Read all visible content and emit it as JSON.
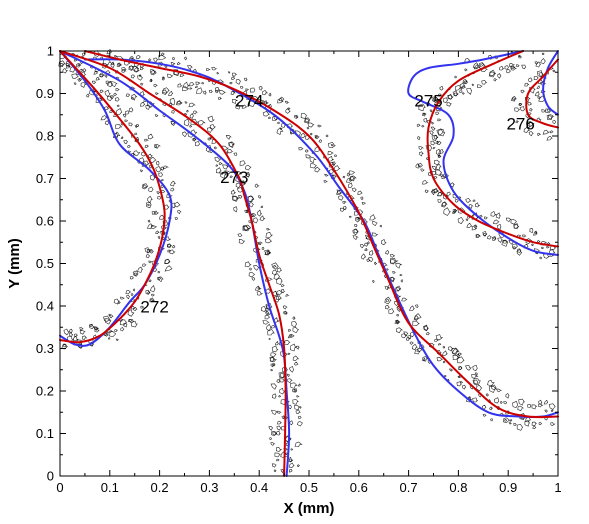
{
  "chart_data": {
    "type": "line",
    "title": "",
    "xlabel": "X (mm)",
    "ylabel": "Y (mm)",
    "xlim": [
      0,
      1
    ],
    "ylim": [
      0,
      1
    ],
    "xticks": [
      "0",
      "0.1",
      "0.2",
      "0.3",
      "0.4",
      "0.5",
      "0.6",
      "0.7",
      "0.8",
      "0.9",
      "1"
    ],
    "yticks": [
      "0",
      "0.1",
      "0.2",
      "0.3",
      "0.4",
      "0.5",
      "0.6",
      "0.7",
      "0.8",
      "0.9",
      "1"
    ],
    "grid": false,
    "legend": "none",
    "colors": {
      "red": "#cc0000",
      "blue": "#3333ee",
      "contour": "#000000"
    },
    "front_labels": [
      {
        "text": "272",
        "x": 0.19,
        "y": 0.385
      },
      {
        "text": "273",
        "x": 0.35,
        "y": 0.69
      },
      {
        "text": "274",
        "x": 0.38,
        "y": 0.87
      },
      {
        "text": "275",
        "x": 0.74,
        "y": 0.87
      },
      {
        "text": "276",
        "x": 0.925,
        "y": 0.815
      }
    ],
    "series": [
      {
        "color": "red",
        "points": [
          [
            0.0,
            0.32
          ],
          [
            0.04,
            0.315
          ],
          [
            0.08,
            0.33
          ],
          [
            0.12,
            0.37
          ],
          [
            0.15,
            0.41
          ],
          [
            0.17,
            0.45
          ],
          [
            0.19,
            0.5
          ],
          [
            0.205,
            0.56
          ],
          [
            0.21,
            0.62
          ],
          [
            0.2,
            0.68
          ],
          [
            0.185,
            0.73
          ],
          [
            0.16,
            0.78
          ],
          [
            0.12,
            0.84
          ],
          [
            0.07,
            0.91
          ],
          [
            0.0,
            1.0
          ]
        ]
      },
      {
        "color": "blue",
        "points": [
          [
            0.0,
            0.33
          ],
          [
            0.03,
            0.31
          ],
          [
            0.06,
            0.31
          ],
          [
            0.1,
            0.35
          ],
          [
            0.14,
            0.41
          ],
          [
            0.17,
            0.45
          ],
          [
            0.2,
            0.52
          ],
          [
            0.22,
            0.6
          ],
          [
            0.22,
            0.66
          ],
          [
            0.18,
            0.72
          ],
          [
            0.12,
            0.78
          ],
          [
            0.09,
            0.86
          ],
          [
            0.05,
            0.93
          ],
          [
            0.0,
            1.0
          ]
        ]
      },
      {
        "color": "red",
        "points": [
          [
            0.45,
            0.0
          ],
          [
            0.452,
            0.1
          ],
          [
            0.453,
            0.2
          ],
          [
            0.45,
            0.3
          ],
          [
            0.44,
            0.38
          ],
          [
            0.42,
            0.45
          ],
          [
            0.4,
            0.52
          ],
          [
            0.385,
            0.6
          ],
          [
            0.37,
            0.66
          ],
          [
            0.36,
            0.7
          ],
          [
            0.32,
            0.78
          ],
          [
            0.26,
            0.84
          ],
          [
            0.18,
            0.9
          ],
          [
            0.1,
            0.96
          ],
          [
            0.0,
            1.0
          ]
        ]
      },
      {
        "color": "blue",
        "points": [
          [
            0.455,
            0.0
          ],
          [
            0.46,
            0.1
          ],
          [
            0.455,
            0.2
          ],
          [
            0.45,
            0.28
          ],
          [
            0.44,
            0.33
          ],
          [
            0.42,
            0.4
          ],
          [
            0.4,
            0.5
          ],
          [
            0.385,
            0.6
          ],
          [
            0.37,
            0.67
          ],
          [
            0.34,
            0.73
          ],
          [
            0.27,
            0.8
          ],
          [
            0.2,
            0.86
          ],
          [
            0.12,
            0.93
          ],
          [
            0.0,
            1.0
          ]
        ]
      },
      {
        "color": "red",
        "points": [
          [
            0.05,
            1.0
          ],
          [
            0.12,
            0.98
          ],
          [
            0.2,
            0.96
          ],
          [
            0.28,
            0.94
          ],
          [
            0.35,
            0.91
          ],
          [
            0.43,
            0.86
          ],
          [
            0.5,
            0.8
          ],
          [
            0.55,
            0.72
          ],
          [
            0.6,
            0.62
          ],
          [
            0.63,
            0.54
          ],
          [
            0.66,
            0.46
          ],
          [
            0.7,
            0.36
          ],
          [
            0.76,
            0.29
          ],
          [
            0.82,
            0.22
          ],
          [
            0.88,
            0.16
          ],
          [
            0.94,
            0.14
          ],
          [
            1.0,
            0.14
          ]
        ]
      },
      {
        "color": "blue",
        "points": [
          [
            0.05,
            0.98
          ],
          [
            0.12,
            0.98
          ],
          [
            0.2,
            0.97
          ],
          [
            0.27,
            0.95
          ],
          [
            0.33,
            0.92
          ],
          [
            0.43,
            0.85
          ],
          [
            0.51,
            0.76
          ],
          [
            0.56,
            0.68
          ],
          [
            0.61,
            0.6
          ],
          [
            0.64,
            0.52
          ],
          [
            0.67,
            0.44
          ],
          [
            0.71,
            0.34
          ],
          [
            0.75,
            0.26
          ],
          [
            0.8,
            0.2
          ],
          [
            0.86,
            0.15
          ],
          [
            0.92,
            0.14
          ],
          [
            0.97,
            0.14
          ],
          [
            1.0,
            0.15
          ]
        ]
      },
      {
        "color": "red",
        "points": [
          [
            0.93,
            1.0
          ],
          [
            0.87,
            0.97
          ],
          [
            0.8,
            0.93
          ],
          [
            0.76,
            0.88
          ],
          [
            0.74,
            0.82
          ],
          [
            0.74,
            0.76
          ],
          [
            0.75,
            0.7
          ],
          [
            0.79,
            0.64
          ],
          [
            0.84,
            0.6
          ],
          [
            0.9,
            0.57
          ],
          [
            0.95,
            0.55
          ],
          [
            1.0,
            0.54
          ]
        ]
      },
      {
        "color": "blue",
        "points": [
          [
            0.93,
            1.0
          ],
          [
            0.85,
            0.98
          ],
          [
            0.8,
            0.97
          ],
          [
            0.74,
            0.96
          ],
          [
            0.71,
            0.94
          ],
          [
            0.7,
            0.9
          ],
          [
            0.73,
            0.88
          ],
          [
            0.78,
            0.85
          ],
          [
            0.79,
            0.8
          ],
          [
            0.77,
            0.74
          ],
          [
            0.79,
            0.67
          ],
          [
            0.84,
            0.61
          ],
          [
            0.9,
            0.56
          ],
          [
            0.95,
            0.53
          ],
          [
            1.0,
            0.52
          ]
        ]
      },
      {
        "color": "red",
        "points": [
          [
            1.0,
            0.98
          ],
          [
            0.97,
            0.94
          ],
          [
            0.94,
            0.9
          ],
          [
            0.94,
            0.85
          ],
          [
            0.97,
            0.83
          ],
          [
            1.0,
            0.82
          ]
        ]
      },
      {
        "color": "blue",
        "points": [
          [
            1.0,
            1.0
          ],
          [
            0.98,
            0.96
          ],
          [
            0.97,
            0.91
          ],
          [
            0.98,
            0.87
          ],
          [
            1.0,
            0.85
          ]
        ]
      }
    ]
  }
}
